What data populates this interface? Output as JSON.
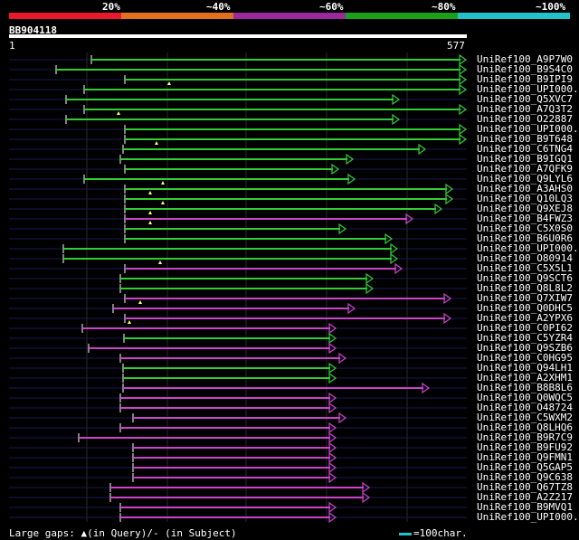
{
  "colors": {
    "bg": "#000000",
    "band_20": "#e8192c",
    "band_40": "#e07020",
    "band_60": "#9a2a9a",
    "band_80": "#1aa01a",
    "band_100": "#22c2c8",
    "hit_green": "#33cc33",
    "hit_magenta": "#cc44cc",
    "track": "#1a1a55"
  },
  "scale": {
    "labels": [
      "20%",
      "~40%",
      "~60%",
      "~80%",
      "~100%"
    ]
  },
  "query": {
    "name": "BB904118",
    "start": "1",
    "end": "577"
  },
  "hits": [
    {
      "id": "UniRef100_A9P7W0",
      "color": "green"
    },
    {
      "id": "UniRef100_B9S4C0",
      "color": "green"
    },
    {
      "id": "UniRef100_B9IPI9",
      "color": "green"
    },
    {
      "id": "UniRef100_UPI000..",
      "color": "green"
    },
    {
      "id": "UniRef100_Q5XVC7",
      "color": "green"
    },
    {
      "id": "UniRef100_A7Q3T2",
      "color": "green"
    },
    {
      "id": "UniRef100_O22887",
      "color": "green"
    },
    {
      "id": "UniRef100_UPI000..",
      "color": "green"
    },
    {
      "id": "UniRef100_B9T648",
      "color": "green"
    },
    {
      "id": "UniRef100_C6TNG4",
      "color": "green"
    },
    {
      "id": "UniRef100_B9IGQ1",
      "color": "green"
    },
    {
      "id": "UniRef100_A7QFK9",
      "color": "green"
    },
    {
      "id": "UniRef100_Q9LYL6",
      "color": "green"
    },
    {
      "id": "UniRef100_A3AHS0",
      "color": "green"
    },
    {
      "id": "UniRef100_Q10LQ3",
      "color": "green"
    },
    {
      "id": "UniRef100_Q9XEJ8",
      "color": "green"
    },
    {
      "id": "UniRef100_B4FWZ3",
      "color": "magenta"
    },
    {
      "id": "UniRef100_C5X0S0",
      "color": "green"
    },
    {
      "id": "UniRef100_B6U0R6",
      "color": "green"
    },
    {
      "id": "UniRef100_UPI000..",
      "color": "green"
    },
    {
      "id": "UniRef100_O80914",
      "color": "green"
    },
    {
      "id": "UniRef100_C5X5L1",
      "color": "magenta"
    },
    {
      "id": "UniRef100_Q9SCT6",
      "color": "green"
    },
    {
      "id": "UniRef100_Q8L8L2",
      "color": "green"
    },
    {
      "id": "UniRef100_Q7XIW7",
      "color": "magenta"
    },
    {
      "id": "UniRef100_Q0DHC5",
      "color": "magenta"
    },
    {
      "id": "UniRef100_A2YPX6",
      "color": "magenta"
    },
    {
      "id": "UniRef100_C0PI62",
      "color": "magenta"
    },
    {
      "id": "UniRef100_C5YZR4",
      "color": "green"
    },
    {
      "id": "UniRef100_Q9SZB6",
      "color": "magenta"
    },
    {
      "id": "UniRef100_C0HG95",
      "color": "magenta"
    },
    {
      "id": "UniRef100_Q94LH1",
      "color": "green"
    },
    {
      "id": "UniRef100_A2XHM1",
      "color": "green"
    },
    {
      "id": "UniRef100_B8B8L6",
      "color": "magenta"
    },
    {
      "id": "UniRef100_Q0WQC5",
      "color": "magenta"
    },
    {
      "id": "UniRef100_O48724",
      "color": "magenta"
    },
    {
      "id": "UniRef100_C5WXM2",
      "color": "magenta"
    },
    {
      "id": "UniRef100_Q8LHQ6",
      "color": "magenta"
    },
    {
      "id": "UniRef100_B9R7C9",
      "color": "magenta"
    },
    {
      "id": "UniRef100_B9FU92",
      "color": "magenta"
    },
    {
      "id": "UniRef100_Q9FMN1",
      "color": "magenta"
    },
    {
      "id": "UniRef100_Q5GAP5",
      "color": "magenta"
    },
    {
      "id": "UniRef100_Q9C638",
      "color": "magenta"
    },
    {
      "id": "UniRef100_Q67TZ8",
      "color": "magenta"
    },
    {
      "id": "UniRef100_A2Z217",
      "color": "magenta"
    },
    {
      "id": "UniRef100_B9MVQ1",
      "color": "magenta"
    },
    {
      "id": "UniRef100_UPI000..",
      "color": "magenta"
    }
  ],
  "footer": {
    "gaps_text": "Large gaps: ▲(in Query)/- (in Subject)",
    "legend_text": "=100char."
  }
}
